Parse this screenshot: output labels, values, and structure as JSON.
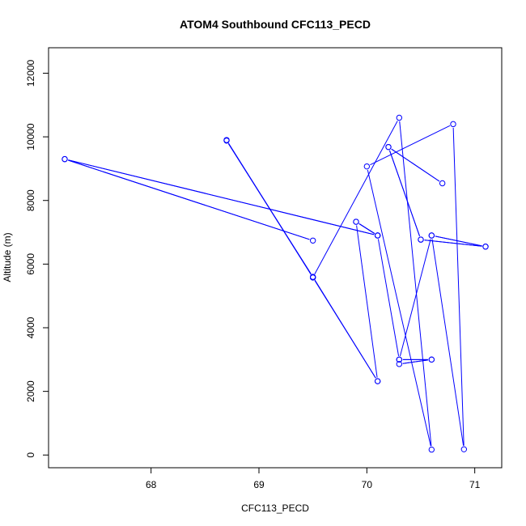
{
  "chart_data": {
    "type": "line",
    "title": "ATOM4 Southbound CFC113_PECD",
    "xlabel": "CFC113_PECD",
    "ylabel": "Altitude (m)",
    "xlim": [
      67.05,
      71.25
    ],
    "ylim": [
      -400,
      12800
    ],
    "x_ticks": [
      68,
      69,
      70,
      71
    ],
    "y_ticks": [
      0,
      2000,
      4000,
      6000,
      8000,
      10000,
      12000
    ],
    "grid": false,
    "legend": "none",
    "color": "#0000ff",
    "points": [
      {
        "x": 68.7,
        "y": 9900
      },
      {
        "x": 69.5,
        "y": 5580
      },
      {
        "x": 68.7,
        "y": 9880
      },
      {
        "x": 69.5,
        "y": 5600
      },
      {
        "x": 70.1,
        "y": 2320
      },
      {
        "x": 69.5,
        "y": 5580
      },
      {
        "x": 70.3,
        "y": 10600
      },
      {
        "x": 70.6,
        "y": 170
      },
      {
        "x": 70.0,
        "y": 9070
      },
      {
        "x": 70.8,
        "y": 10400
      },
      {
        "x": 70.9,
        "y": 180
      },
      {
        "x": 70.6,
        "y": 6900
      },
      {
        "x": 71.1,
        "y": 6550
      },
      {
        "x": 70.5,
        "y": 6770
      },
      {
        "x": 70.2,
        "y": 9680
      },
      {
        "x": 70.7,
        "y": 8540
      },
      {
        "x": 70.2,
        "y": 9680
      },
      {
        "x": 70.5,
        "y": 6770
      },
      {
        "x": 71.1,
        "y": 6550
      },
      {
        "x": 70.6,
        "y": 6900
      },
      {
        "x": 70.3,
        "y": 3000
      },
      {
        "x": 70.6,
        "y": 3000
      },
      {
        "x": 70.3,
        "y": 2860
      },
      {
        "x": 70.6,
        "y": 3000
      },
      {
        "x": 70.3,
        "y": 3000
      },
      {
        "x": 70.1,
        "y": 6900
      },
      {
        "x": 67.2,
        "y": 9300
      },
      {
        "x": 69.5,
        "y": 6740
      },
      {
        "x": 67.2,
        "y": 9300
      },
      {
        "x": 70.1,
        "y": 6900
      },
      {
        "x": 69.9,
        "y": 7330
      },
      {
        "x": 70.1,
        "y": 6900
      },
      {
        "x": 69.9,
        "y": 7330
      },
      {
        "x": 70.1,
        "y": 2320
      }
    ]
  }
}
